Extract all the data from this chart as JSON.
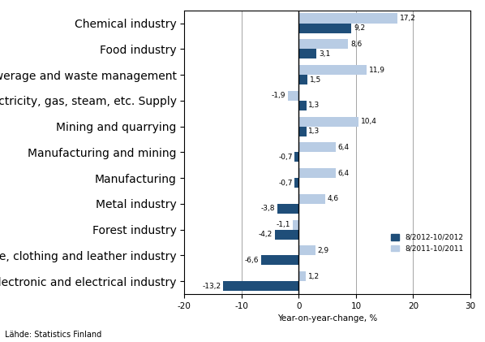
{
  "categories": [
    "Chemical industry",
    "Food industry",
    "Water supply, sewerage and waste management",
    "Electricity, gas, steam, etc. Supply",
    "Mining and quarrying",
    "Manufacturing and mining",
    "Manufacturing",
    "Metal industry",
    "Forest industry",
    "Textile, clothing and leather industry",
    "Electronic and electrical industry"
  ],
  "series_2012": [
    9.2,
    3.1,
    1.5,
    1.3,
    1.3,
    -0.7,
    -0.7,
    -3.8,
    -4.2,
    -6.6,
    -13.2
  ],
  "series_2011": [
    17.2,
    8.6,
    11.9,
    -1.9,
    10.4,
    6.4,
    6.4,
    4.6,
    -1.1,
    2.9,
    1.2
  ],
  "color_2012": "#1F4E79",
  "color_2011": "#B8CCE4",
  "xlim": [
    -20,
    30
  ],
  "xticks": [
    -20,
    -10,
    0,
    10,
    20,
    30
  ],
  "xlabel": "Year-on-year-change, %",
  "legend_2012": "8/2012-10/2012",
  "legend_2011": "8/2011-10/2011",
  "source": "Lähde: Statistics Finland",
  "bar_height": 0.38
}
